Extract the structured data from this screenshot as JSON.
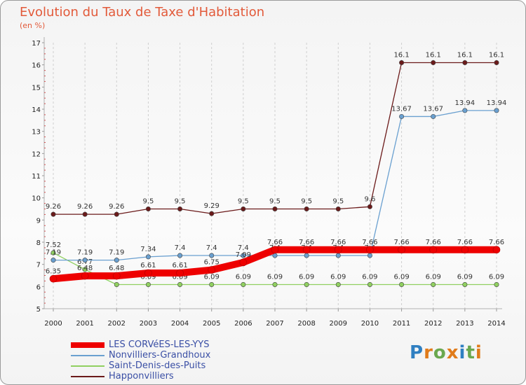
{
  "title": "Evolution du Taux de Taxe d'Habitation",
  "subtitle": "(en %)",
  "logo": {
    "letters": [
      "P",
      "r",
      "o",
      "x",
      "i",
      "t",
      "i"
    ],
    "colors": [
      "#2f7fc1",
      "#e07b1a",
      "#6aa84f",
      "#e07b1a",
      "#2f7fc1",
      "#6aa84f",
      "#e07b1a"
    ]
  },
  "chart_data": {
    "type": "line",
    "x": [
      "2000",
      "2001",
      "2002",
      "2003",
      "2004",
      "2005",
      "2006",
      "2007",
      "2008",
      "2009",
      "2010",
      "2011",
      "2012",
      "2013",
      "2014"
    ],
    "ylim": [
      5,
      17
    ],
    "yticks": [
      "5",
      "6",
      "7",
      "8",
      "9",
      "10",
      "11",
      "12",
      "13",
      "14",
      "15",
      "16",
      "17"
    ],
    "grid": "vertical dashed",
    "legend": "bottom-left",
    "series": [
      {
        "name": "Happonvilliers",
        "color": "#6b1a1a",
        "values": [
          9.26,
          9.26,
          9.26,
          9.5,
          9.5,
          9.29,
          9.5,
          9.5,
          9.5,
          9.5,
          9.6,
          16.1,
          16.1,
          16.1,
          16.1
        ],
        "labels": [
          "9.26",
          "9.26",
          "9.26",
          "9.5",
          "9.5",
          "9.29",
          "9.5",
          "9.5",
          "9.5",
          "9.5",
          "9.6",
          "16.1",
          "16.1",
          "16.1",
          "16.1"
        ]
      },
      {
        "name": "Saint-Denis-des-Puits",
        "color": "#90d060",
        "values": [
          7.52,
          6.77,
          6.09,
          6.09,
          6.09,
          6.09,
          6.09,
          6.09,
          6.09,
          6.09,
          6.09,
          6.09,
          6.09,
          6.09,
          6.09
        ],
        "labels": [
          "7.52",
          "6.77",
          "6.09",
          "6.09",
          "6.09",
          "6.09",
          "6.09",
          "6.09",
          "6.09",
          "6.09",
          "6.09",
          "6.09",
          "6.09",
          "6.09",
          "6.09"
        ]
      },
      {
        "name": "Nonvilliers-Grandhoux",
        "color": "#6aa0d0",
        "values": [
          7.19,
          7.19,
          7.19,
          7.34,
          7.4,
          7.4,
          7.4,
          7.4,
          7.4,
          7.4,
          7.4,
          13.67,
          13.67,
          13.94,
          13.94
        ],
        "labels": [
          "7.19",
          "7.19",
          "7.19",
          "7.34",
          "7.4",
          "7.4",
          "7.4",
          "7.4",
          "7.4",
          "7.4",
          "7.4",
          "13.67",
          "13.67",
          "13.94",
          "13.94"
        ]
      },
      {
        "name": "LES CORVéES-LES-YYS",
        "color": "#ee0000",
        "values": [
          6.35,
          6.48,
          6.48,
          6.61,
          6.61,
          6.75,
          7.09,
          7.66,
          7.66,
          7.66,
          7.66,
          7.66,
          7.66,
          7.66,
          7.66
        ],
        "labels": [
          "6.35",
          "6.48",
          "6.48",
          "6.61",
          "6.61",
          "6.75",
          "7.09",
          "7.66",
          "7.66",
          "7.66",
          "7.66",
          "7.66",
          "7.66",
          "7.66",
          "7.66"
        ]
      }
    ],
    "legend_order": [
      {
        "name": "LES CORVéES-LES-YYS",
        "color": "#ee0000"
      },
      {
        "name": "Nonvilliers-Grandhoux",
        "color": "#6aa0d0"
      },
      {
        "name": "Saint-Denis-des-Puits",
        "color": "#90d060"
      },
      {
        "name": "Happonvilliers",
        "color": "#6b1a1a"
      }
    ]
  }
}
